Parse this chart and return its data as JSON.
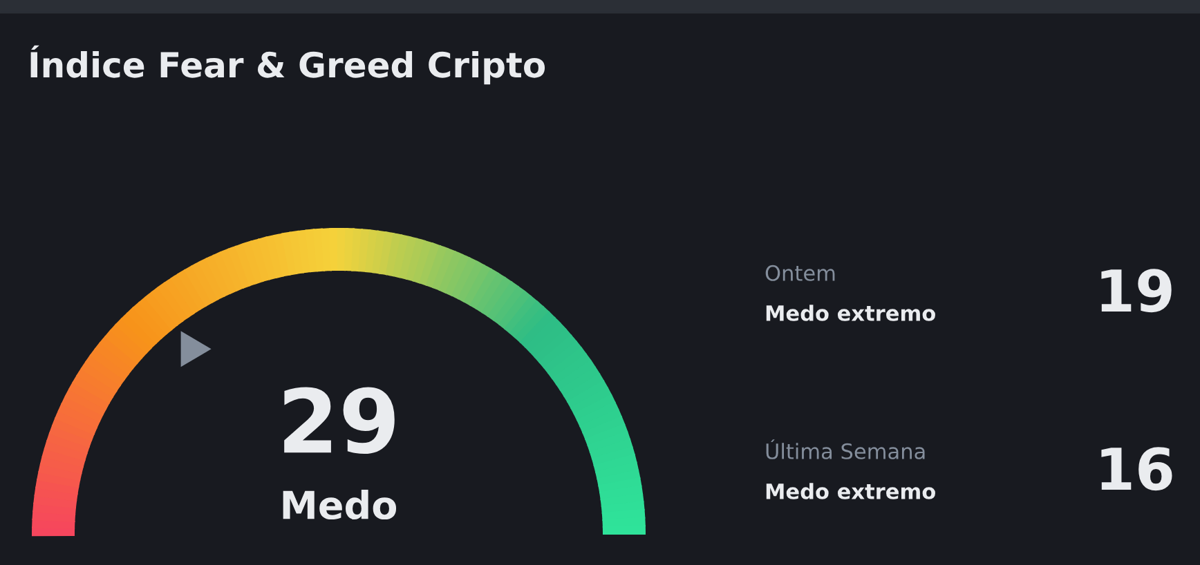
{
  "chart_data": {
    "type": "other",
    "title": "Índice Fear & Greed Cripto",
    "categories": [
      "Medo",
      "Medo extremo",
      "Medo extremo"
    ],
    "values": [
      29,
      19,
      16
    ],
    "value_labels": [
      "29",
      "19",
      "16"
    ],
    "annotations": [
      "Ontem",
      "Última Semana"
    ]
  }
}
